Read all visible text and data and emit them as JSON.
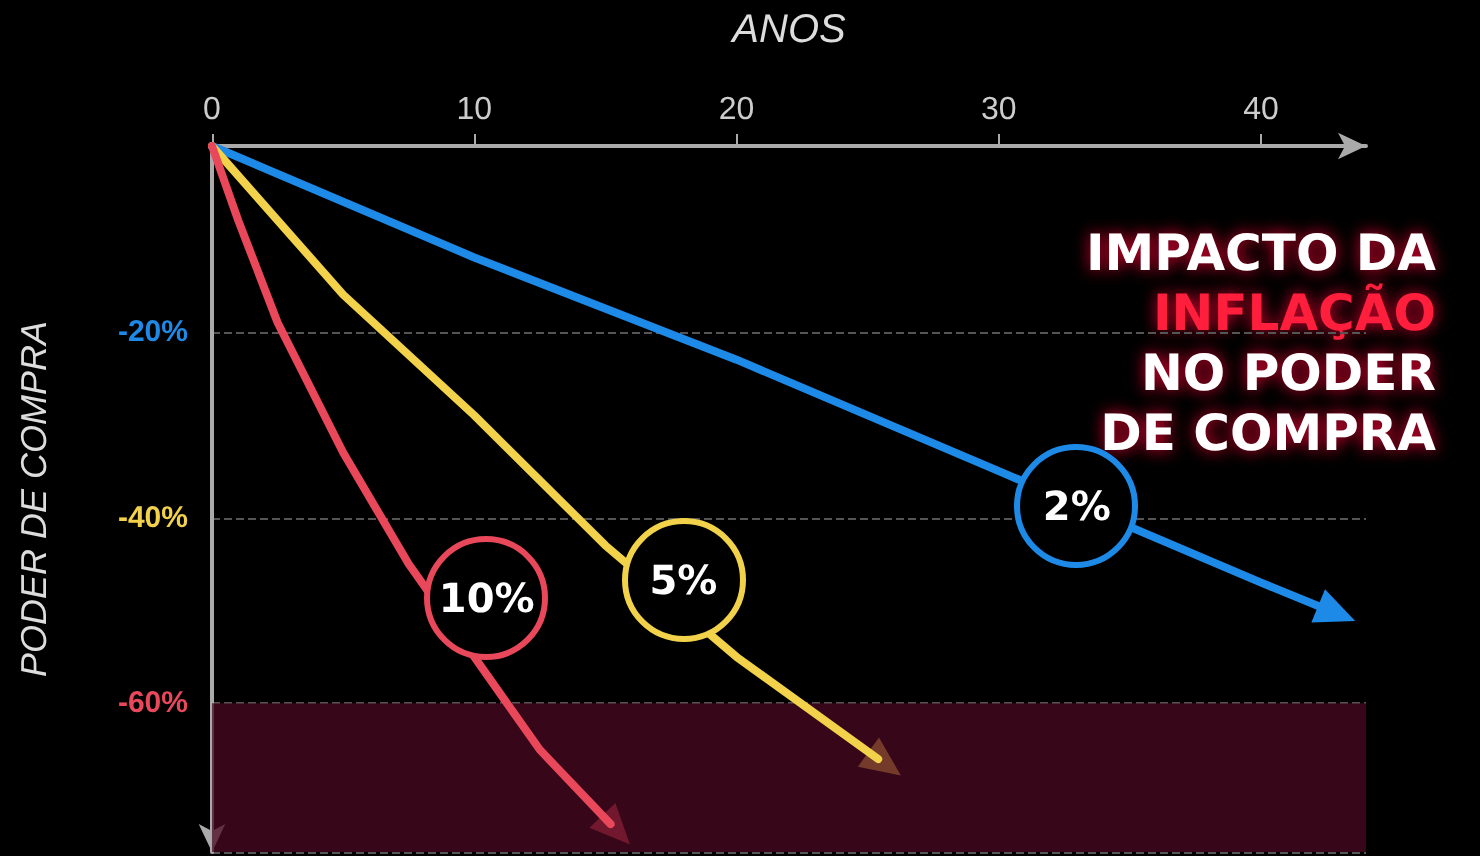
{
  "chart_data": {
    "type": "line",
    "title": "IMPACTO DA INFLAÇÃO NO PODER DE COMPRA",
    "xlabel": "ANOS",
    "ylabel": "PODER DE COMPRA",
    "xlim": [
      0,
      44
    ],
    "xticks": [
      0,
      10,
      20,
      30,
      40
    ],
    "ylim": [
      -76,
      0
    ],
    "yticks": [
      {
        "value": -20,
        "label": "-20%"
      },
      {
        "value": -40,
        "label": "-40%"
      },
      {
        "value": -60,
        "label": "-60%"
      }
    ],
    "grid": "y",
    "line_style": "solid",
    "legend": false,
    "bands": [
      {
        "axis": "y",
        "from": -76,
        "to": -60,
        "color": "#4a0820"
      }
    ],
    "series": [
      {
        "name": "2%",
        "color": "#1e8ae8",
        "x": [
          0,
          10,
          20,
          30,
          40,
          42.6
        ],
        "values": [
          0,
          -12,
          -23,
          -35,
          -47,
          -50
        ]
      },
      {
        "name": "5%",
        "color": "#f2d24a",
        "x": [
          0,
          5,
          10,
          15,
          20,
          25.4
        ],
        "values": [
          0,
          -16,
          -29,
          -43,
          -55,
          -66
        ]
      },
      {
        "name": "10%",
        "color": "#e8485a",
        "x": [
          0,
          1,
          2.5,
          5,
          7.5,
          10,
          12.5,
          15.2
        ],
        "values": [
          0,
          -8,
          -19,
          -33,
          -45,
          -55,
          -65,
          -73
        ]
      }
    ]
  }
}
